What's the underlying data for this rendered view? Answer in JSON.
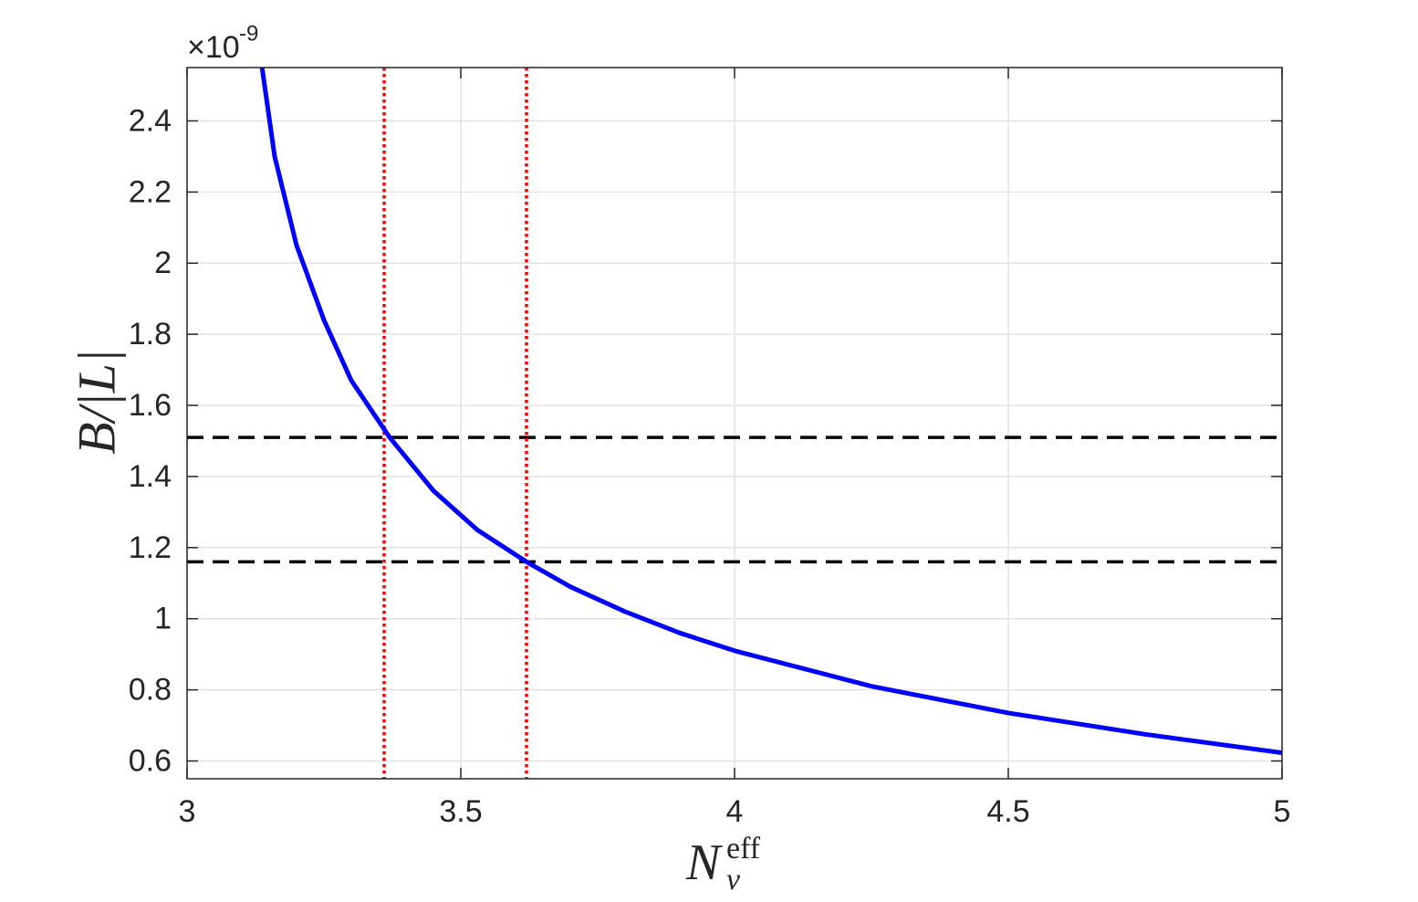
{
  "chart_data": {
    "type": "line",
    "y_multiplier": "×10",
    "y_exponent": -9,
    "ylabel": "B/|L|",
    "xlabel": {
      "base": "N",
      "sub": "ν",
      "sup": "eff"
    },
    "x": [
      3.137,
      3.16,
      3.2,
      3.25,
      3.3,
      3.37,
      3.45,
      3.53,
      3.62,
      3.7,
      3.8,
      3.9,
      4.0,
      4.25,
      4.5,
      4.75,
      5.0
    ],
    "series": [
      {
        "color": "#0000ff",
        "values": [
          2.55,
          2.3,
          2.05,
          1.84,
          1.67,
          1.51,
          1.36,
          1.25,
          1.16,
          1.09,
          1.02,
          0.96,
          0.91,
          0.81,
          0.735,
          0.675,
          0.623
        ]
      }
    ],
    "hlines": [
      1.51,
      1.16
    ],
    "hline_color": "#000000",
    "vlines": [
      3.36,
      3.62
    ],
    "vline_color": "#ff0000",
    "xlim": [
      3,
      5
    ],
    "ylim": [
      0.55,
      2.55
    ],
    "xticks": [
      3,
      3.5,
      4,
      4.5,
      5
    ],
    "yticks": [
      0.6,
      0.8,
      1,
      1.2,
      1.4,
      1.6,
      1.8,
      2,
      2.2,
      2.4
    ],
    "grid": true
  }
}
